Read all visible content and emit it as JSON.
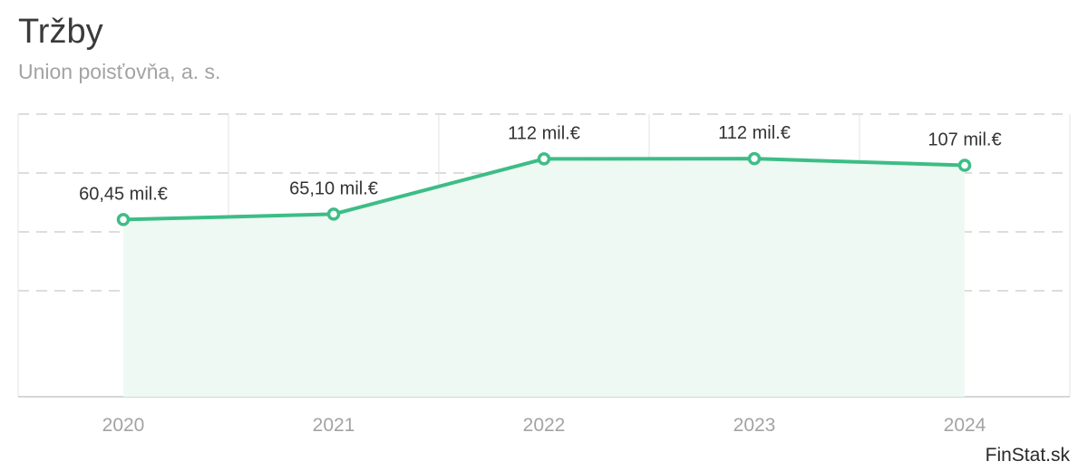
{
  "header": {
    "title": "Tržby",
    "subtitle": "Union poisťovňa, a. s."
  },
  "footer": {
    "source": "FinStat.sk"
  },
  "colors": {
    "line": "#3dbd86",
    "fill": "#eef9f3",
    "grid_dashed": "#dddddd",
    "grid_vertical": "#e3e3e3",
    "axis": "#d6d6d6",
    "marker_fill": "#ffffff"
  },
  "chart_data": {
    "type": "area",
    "title": "Tržby",
    "subtitle": "Union poisťovňa, a. s.",
    "categories": [
      "2020",
      "2021",
      "2022",
      "2023",
      "2024"
    ],
    "series": [
      {
        "name": "Tržby",
        "values": [
          60.45,
          65.1,
          112,
          112.2,
          106.5
        ],
        "labels": [
          "60,45 mil.€",
          "65,10 mil.€",
          "112 mil.€",
          "112 mil.€",
          "107 mil.€"
        ]
      }
    ],
    "unit": "mil.€",
    "ylim": [
      -90,
      150
    ],
    "y_gridlines": [
      0,
      50,
      100,
      150
    ],
    "xlabel": "",
    "ylabel": "",
    "legend": "none"
  }
}
